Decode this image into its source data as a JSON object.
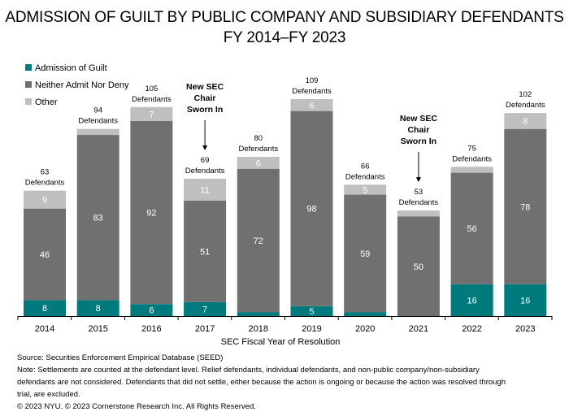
{
  "chart_data": {
    "type": "bar",
    "stacked": true,
    "title": "ADMISSION OF GUILT BY PUBLIC COMPANY AND SUBSIDIARY DEFENDANTS",
    "subtitle": "FY 2014–FY 2023",
    "xlabel": "SEC Fiscal Year of Resolution",
    "ylabel": "",
    "ylim": [
      0,
      109
    ],
    "grid": false,
    "legend_position": "top-left",
    "categories": [
      "2014",
      "2015",
      "2016",
      "2017",
      "2018",
      "2019",
      "2020",
      "2021",
      "2022",
      "2023"
    ],
    "series": [
      {
        "name": "Admission of Guilt",
        "color": "#007A7C",
        "values": [
          8,
          8,
          6,
          7,
          2,
          5,
          2,
          0,
          16,
          16
        ],
        "labels": [
          "8",
          "8",
          "6",
          "7",
          "",
          "5",
          "",
          "",
          "16",
          "16"
        ]
      },
      {
        "name": "Neither Admit Nor Deny",
        "color": "#707070",
        "values": [
          46,
          83,
          92,
          51,
          72,
          98,
          59,
          50,
          56,
          78
        ],
        "labels": [
          "46",
          "83",
          "92",
          "51",
          "72",
          "98",
          "59",
          "50",
          "56",
          "78"
        ]
      },
      {
        "name": "Other",
        "color": "#BFBFBF",
        "values": [
          9,
          3,
          7,
          11,
          6,
          6,
          5,
          3,
          3,
          8
        ],
        "labels": [
          "9",
          "",
          "7",
          "11",
          "6",
          "6",
          "5",
          "",
          "",
          "8"
        ]
      }
    ],
    "totals": [
      63,
      94,
      105,
      69,
      80,
      109,
      66,
      53,
      75,
      102
    ],
    "total_label_suffix": "Defendants",
    "annotations": [
      {
        "category": "2017",
        "text": [
          "New SEC",
          "Chair",
          "Sworn In"
        ]
      },
      {
        "category": "2021",
        "text": [
          "New SEC",
          "Chair",
          "Sworn In"
        ]
      }
    ]
  },
  "legend": [
    {
      "label": "Admission of Guilt",
      "color": "#007A7C"
    },
    {
      "label": "Neither Admit Nor Deny",
      "color": "#707070"
    },
    {
      "label": "Other",
      "color": "#BFBFBF"
    }
  ],
  "footer": {
    "source": "Source: Securities Enforcement Empirical Database (SEED)",
    "note1": "Note: Settlements are counted at the defendant level. Relief defendants, individual defendants, and non-public company/non-subsidiary",
    "note2": "defendants are not considered. Defendants that did not settle, either because the action is ongoing or because the action was resolved through",
    "note3": "trial, are excluded.",
    "copyright": "© 2023 NYU. © 2023 Cornerstone Research Inc. All Rights Reserved."
  }
}
